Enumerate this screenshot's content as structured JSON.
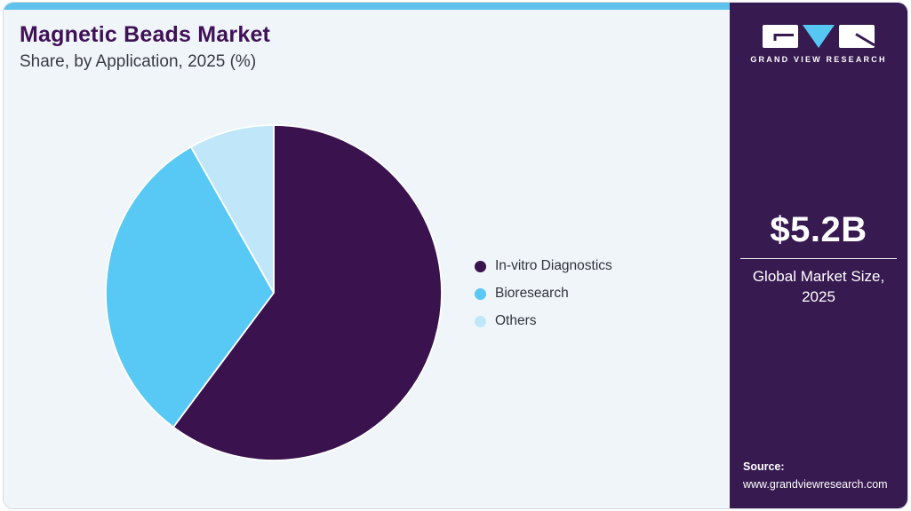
{
  "header": {
    "title": "Magnetic Beads Market",
    "subtitle": "Share, by Application, 2025 (%)"
  },
  "chart_data": {
    "type": "pie",
    "title": "Magnetic Beads Market Share, by Application, 2025 (%)",
    "labels": [
      "In-vitro Diagnostics",
      "Bioresearch",
      "Others"
    ],
    "values": [
      60.2,
      31.6,
      8.2
    ],
    "colors": [
      "#39124e",
      "#58c8f4",
      "#c0e7f9"
    ],
    "start_angle_deg": 0,
    "direction": "clockwise",
    "legend_position": "right",
    "slice_separator_color": "#ffffff"
  },
  "panel": {
    "brand": "GRAND VIEW RESEARCH",
    "market_size": {
      "value": "$5.2B",
      "caption": "Global Market Size, 2025"
    },
    "source": {
      "label": "Source:",
      "url": "www.grandviewresearch.com"
    }
  },
  "colors": {
    "topbar": "#5fc2ec",
    "panel_bg": "#371a50",
    "card_bg": "#f0f5fa",
    "title": "#3f1156",
    "subtitle": "#3a3a44",
    "logo_triangle": "#56c7f2",
    "logo_mark": "#371a50"
  }
}
